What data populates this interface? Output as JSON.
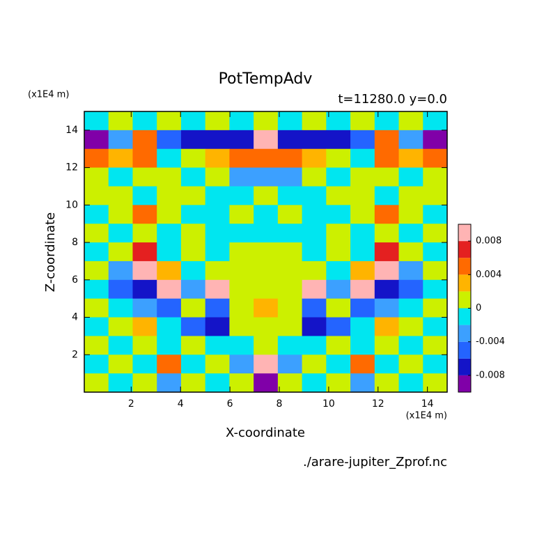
{
  "chart_data": {
    "type": "contour",
    "title": "PotTempAdv",
    "subtitle": "t=11280.0 y=0.0",
    "xlabel": "X-coordinate",
    "ylabel": "Z-coordinate",
    "xunit": "(x1E4 m)",
    "yunit": "(x1E4 m)",
    "source": "./arare-jupiter_Zprof.nc",
    "xlim": [
      0.1,
      14.8
    ],
    "ylim": [
      0,
      15
    ],
    "xticks": [
      2,
      4,
      6,
      8,
      10,
      12,
      14
    ],
    "yticks": [
      2,
      4,
      6,
      8,
      10,
      12,
      14
    ],
    "levels": [
      -0.01,
      -0.008,
      -0.006,
      -0.004,
      -0.002,
      0,
      0.002,
      0.004,
      0.006,
      0.008,
      0.01
    ],
    "colors": [
      "#8000a8",
      "#1414c8",
      "#2464ff",
      "#3ca0ff",
      "#00e6f0",
      "#ccf000",
      "#ffb400",
      "#ff6a00",
      "#e42020",
      "#ffb4b4"
    ],
    "colorbar_ticks": [
      -0.008,
      -0.004,
      0,
      0.004,
      0.008
    ],
    "z": [
      [
        -0.001,
        0.001,
        -0.001,
        0.001,
        -0.001,
        0.001,
        -0.001,
        0.001,
        -0.001,
        0.001,
        -0.001,
        0.001,
        -0.001,
        0.001,
        -0.001
      ],
      [
        -0.009,
        -0.003,
        0.005,
        -0.005,
        -0.007,
        -0.007,
        -0.007,
        0.009,
        -0.007,
        -0.007,
        -0.007,
        -0.005,
        0.005,
        -0.003,
        -0.009
      ],
      [
        0.005,
        0.003,
        0.005,
        -0.001,
        0.001,
        0.003,
        0.005,
        0.005,
        0.005,
        0.003,
        0.001,
        -0.001,
        0.005,
        0.003,
        0.005
      ],
      [
        0.001,
        -0.001,
        0.001,
        0.001,
        -0.001,
        0.001,
        -0.003,
        -0.003,
        -0.003,
        0.001,
        -0.001,
        0.001,
        0.001,
        -0.001,
        0.001
      ],
      [
        0.001,
        0.001,
        -0.001,
        0.001,
        0.001,
        -0.001,
        -0.001,
        0.001,
        -0.001,
        -0.001,
        0.001,
        0.001,
        -0.001,
        0.001,
        0.001
      ],
      [
        -0.001,
        0.001,
        0.005,
        0.001,
        -0.001,
        -0.001,
        0.001,
        -0.001,
        0.001,
        -0.001,
        -0.001,
        0.001,
        0.005,
        0.001,
        -0.001
      ],
      [
        0.001,
        -0.001,
        0.001,
        -0.001,
        0.001,
        -0.001,
        -0.001,
        -0.001,
        -0.001,
        -0.001,
        0.001,
        -0.001,
        0.001,
        -0.001,
        0.001
      ],
      [
        -0.001,
        0.001,
        0.007,
        -0.001,
        0.001,
        -0.001,
        0.001,
        0.001,
        0.001,
        -0.001,
        0.001,
        -0.001,
        0.007,
        0.001,
        -0.001
      ],
      [
        0.001,
        -0.003,
        0.009,
        0.003,
        -0.001,
        0.001,
        0.001,
        0.001,
        0.001,
        0.001,
        -0.001,
        0.003,
        0.009,
        -0.003,
        0.001
      ],
      [
        -0.001,
        -0.005,
        -0.007,
        0.009,
        -0.003,
        0.009,
        0.001,
        0.001,
        0.001,
        0.009,
        -0.003,
        0.009,
        -0.007,
        -0.005,
        -0.001
      ],
      [
        0.001,
        -0.001,
        -0.003,
        -0.005,
        0.001,
        -0.005,
        0.001,
        0.003,
        0.001,
        -0.005,
        0.001,
        -0.005,
        -0.003,
        -0.001,
        0.001
      ],
      [
        -0.001,
        0.001,
        0.003,
        -0.001,
        -0.005,
        -0.007,
        0.001,
        0.001,
        0.001,
        -0.007,
        -0.005,
        -0.001,
        0.003,
        0.001,
        -0.001
      ],
      [
        0.001,
        -0.001,
        0.001,
        -0.001,
        0.001,
        -0.001,
        -0.001,
        0.001,
        -0.001,
        -0.001,
        0.001,
        -0.001,
        0.001,
        -0.001,
        0.001
      ],
      [
        -0.001,
        0.001,
        -0.001,
        0.005,
        -0.001,
        0.001,
        -0.003,
        0.009,
        -0.003,
        0.001,
        -0.001,
        0.005,
        -0.001,
        0.001,
        -0.001
      ],
      [
        0.001,
        -0.001,
        0.001,
        -0.003,
        0.001,
        -0.001,
        0.001,
        -0.009,
        0.001,
        -0.001,
        0.001,
        -0.003,
        0.001,
        -0.001,
        0.001
      ]
    ]
  }
}
